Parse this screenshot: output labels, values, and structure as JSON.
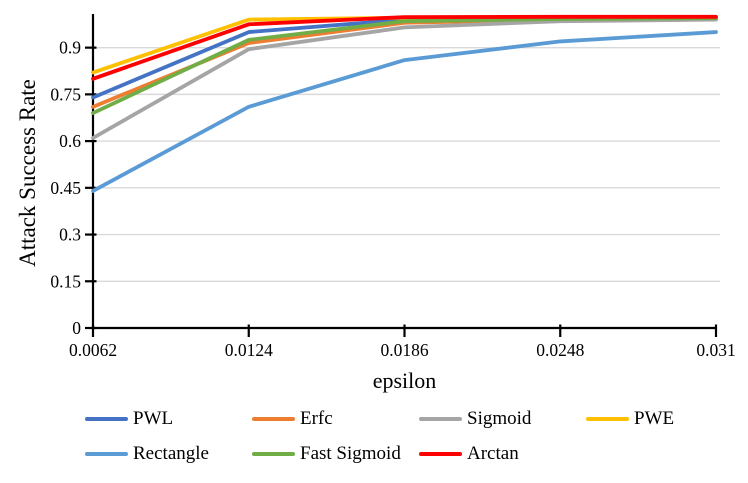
{
  "chart_data": {
    "type": "line",
    "title": "",
    "xlabel": "epsilon",
    "ylabel": "Attack Success Rate",
    "x_tick_labels": [
      "0.0062",
      "0.0124",
      "0.0186",
      "0.0248",
      "0.031"
    ],
    "x_values": [
      0.0062,
      0.0124,
      0.0186,
      0.0248,
      0.031
    ],
    "y_ticks": [
      0,
      0.15,
      0.3,
      0.45,
      0.6,
      0.75,
      0.9
    ],
    "ylim": [
      0,
      1.0
    ],
    "grid": "horizontal",
    "legend_position": "bottom",
    "colors": {
      "axis": "#000000",
      "gridline": "#d9d9d9",
      "background": "#ffffff"
    },
    "series": [
      {
        "name": "PWL",
        "color": "#4472c4",
        "values": [
          0.74,
          0.95,
          0.99,
          0.995,
          0.996
        ]
      },
      {
        "name": "Erfc",
        "color": "#ed7d31",
        "values": [
          0.71,
          0.915,
          0.98,
          0.99,
          0.993
        ]
      },
      {
        "name": "Sigmoid",
        "color": "#a5a5a5",
        "values": [
          0.61,
          0.895,
          0.965,
          0.985,
          0.99
        ]
      },
      {
        "name": "PWE",
        "color": "#ffc000",
        "values": [
          0.82,
          0.99,
          0.996,
          0.997,
          0.997
        ]
      },
      {
        "name": "Rectangle",
        "color": "#5b9bd5",
        "values": [
          0.44,
          0.71,
          0.86,
          0.92,
          0.95
        ]
      },
      {
        "name": "Fast Sigmoid",
        "color": "#70ad47",
        "values": [
          0.69,
          0.925,
          0.985,
          0.992,
          0.995
        ]
      },
      {
        "name": "Arctan",
        "color": "#ff0000",
        "values": [
          0.8,
          0.975,
          0.998,
          0.999,
          0.999
        ]
      }
    ]
  }
}
